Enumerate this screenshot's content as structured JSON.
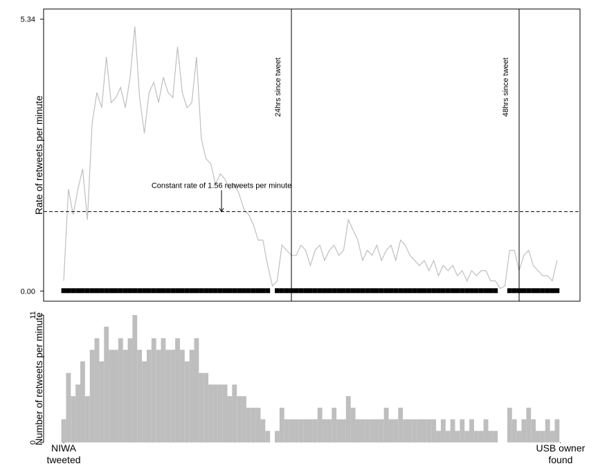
{
  "chart_data": [
    {
      "type": "line",
      "y_label": "Rate of retweets per minute",
      "xlim": [
        -127,
        3265
      ],
      "ylim": [
        -0.2,
        5.54
      ],
      "yticks": [
        {
          "value": 0,
          "label": "0.00"
        },
        {
          "value": 5.34,
          "label": "5.34"
        }
      ],
      "x": [
        0,
        30,
        60,
        90,
        120,
        150,
        180,
        210,
        240,
        270,
        300,
        330,
        360,
        390,
        420,
        450,
        480,
        510,
        540,
        570,
        600,
        630,
        660,
        690,
        720,
        750,
        780,
        810,
        840,
        870,
        900,
        930,
        960,
        990,
        1020,
        1050,
        1080,
        1110,
        1140,
        1170,
        1200,
        1230,
        1260,
        1290,
        1320,
        1350,
        1380,
        1410,
        1440,
        1470,
        1500,
        1530,
        1560,
        1590,
        1620,
        1650,
        1680,
        1710,
        1740,
        1770,
        1800,
        1830,
        1860,
        1890,
        1920,
        1950,
        1980,
        2010,
        2040,
        2070,
        2100,
        2130,
        2160,
        2190,
        2220,
        2250,
        2280,
        2310,
        2340,
        2370,
        2400,
        2430,
        2460,
        2490,
        2520,
        2550,
        2580,
        2610,
        2640,
        2670,
        2700,
        2730,
        2760,
        2790,
        2820,
        2850,
        2880,
        2910,
        2940,
        2970,
        3000,
        3030,
        3060,
        3090,
        3120
      ],
      "values": [
        0.2,
        2.0,
        1.5,
        2.0,
        2.4,
        1.4,
        3.3,
        3.9,
        3.6,
        4.6,
        3.7,
        3.8,
        4.0,
        3.6,
        4.2,
        5.2,
        3.8,
        3.1,
        3.9,
        4.1,
        3.7,
        4.2,
        3.9,
        3.8,
        4.8,
        3.9,
        3.6,
        3.7,
        4.6,
        3.0,
        2.6,
        2.5,
        2.1,
        2.3,
        2.2,
        2.0,
        2.1,
        1.9,
        1.6,
        1.5,
        1.3,
        1.0,
        1.0,
        0.5,
        0.1,
        0.2,
        0.9,
        0.8,
        0.7,
        0.7,
        0.9,
        0.8,
        0.5,
        0.8,
        0.9,
        0.6,
        0.8,
        0.9,
        0.7,
        0.8,
        1.4,
        1.2,
        1.0,
        0.6,
        0.8,
        0.7,
        0.9,
        0.6,
        0.8,
        0.9,
        0.6,
        1.0,
        0.9,
        0.7,
        0.6,
        0.5,
        0.6,
        0.4,
        0.6,
        0.3,
        0.5,
        0.4,
        0.5,
        0.3,
        0.4,
        0.2,
        0.4,
        0.3,
        0.4,
        0.4,
        0.2,
        0.2,
        0.05,
        0.1,
        0.8,
        0.8,
        0.4,
        0.7,
        0.8,
        0.5,
        0.4,
        0.3,
        0.3,
        0.2,
        0.6
      ],
      "color": "#bebebe",
      "hline": 1.56,
      "annotation": {
        "text": "Constant rate of 1.56 retweets per minute",
        "x": 998,
        "y": 1.56
      },
      "vlines": [
        {
          "value": 1440,
          "label": "24hrs since tweet"
        },
        {
          "value": 2880,
          "label": "48hrs since tweet"
        }
      ],
      "rug": true,
      "box": true
    },
    {
      "type": "bar",
      "y_label": "Number of retweets per minute",
      "xlim": [
        -127,
        3265
      ],
      "ylim": [
        0,
        11
      ],
      "yticks": [
        0,
        11
      ],
      "xticks": [
        {
          "value": 0,
          "label": "NIWA tweeted"
        },
        {
          "value": 3142,
          "label": "USB owner found"
        }
      ],
      "x": [
        0,
        30,
        60,
        90,
        120,
        150,
        180,
        210,
        240,
        270,
        300,
        330,
        360,
        390,
        420,
        450,
        480,
        510,
        540,
        570,
        600,
        630,
        660,
        690,
        720,
        750,
        780,
        810,
        840,
        870,
        900,
        930,
        960,
        990,
        1020,
        1050,
        1080,
        1110,
        1140,
        1170,
        1200,
        1230,
        1260,
        1290,
        1320,
        1350,
        1380,
        1410,
        1440,
        1470,
        1500,
        1530,
        1560,
        1590,
        1620,
        1650,
        1680,
        1710,
        1740,
        1770,
        1800,
        1830,
        1860,
        1890,
        1920,
        1950,
        1980,
        2010,
        2040,
        2070,
        2100,
        2130,
        2160,
        2190,
        2220,
        2250,
        2280,
        2310,
        2340,
        2370,
        2400,
        2430,
        2460,
        2490,
        2520,
        2550,
        2580,
        2610,
        2640,
        2670,
        2700,
        2730,
        2760,
        2790,
        2820,
        2850,
        2880,
        2910,
        2940,
        2970,
        3000,
        3030,
        3060,
        3090,
        3120
      ],
      "values": [
        2,
        6,
        4,
        5,
        7,
        4,
        8,
        9,
        7,
        10,
        8,
        8,
        9,
        8,
        9,
        11,
        8,
        7,
        8,
        9,
        8,
        9,
        8,
        8,
        9,
        8,
        7,
        8,
        9,
        6,
        6,
        5,
        5,
        5,
        5,
        4,
        5,
        4,
        4,
        3,
        3,
        3,
        2,
        1,
        0,
        1,
        3,
        2,
        2,
        2,
        2,
        2,
        2,
        2,
        3,
        2,
        2,
        3,
        2,
        2,
        4,
        3,
        2,
        2,
        2,
        2,
        2,
        2,
        3,
        2,
        2,
        3,
        2,
        2,
        2,
        2,
        2,
        2,
        2,
        1,
        2,
        1,
        2,
        1,
        2,
        1,
        2,
        1,
        1,
        2,
        1,
        1,
        0,
        0,
        3,
        2,
        1,
        2,
        3,
        2,
        1,
        1,
        2,
        1,
        2
      ],
      "color": "#bebebe"
    }
  ]
}
